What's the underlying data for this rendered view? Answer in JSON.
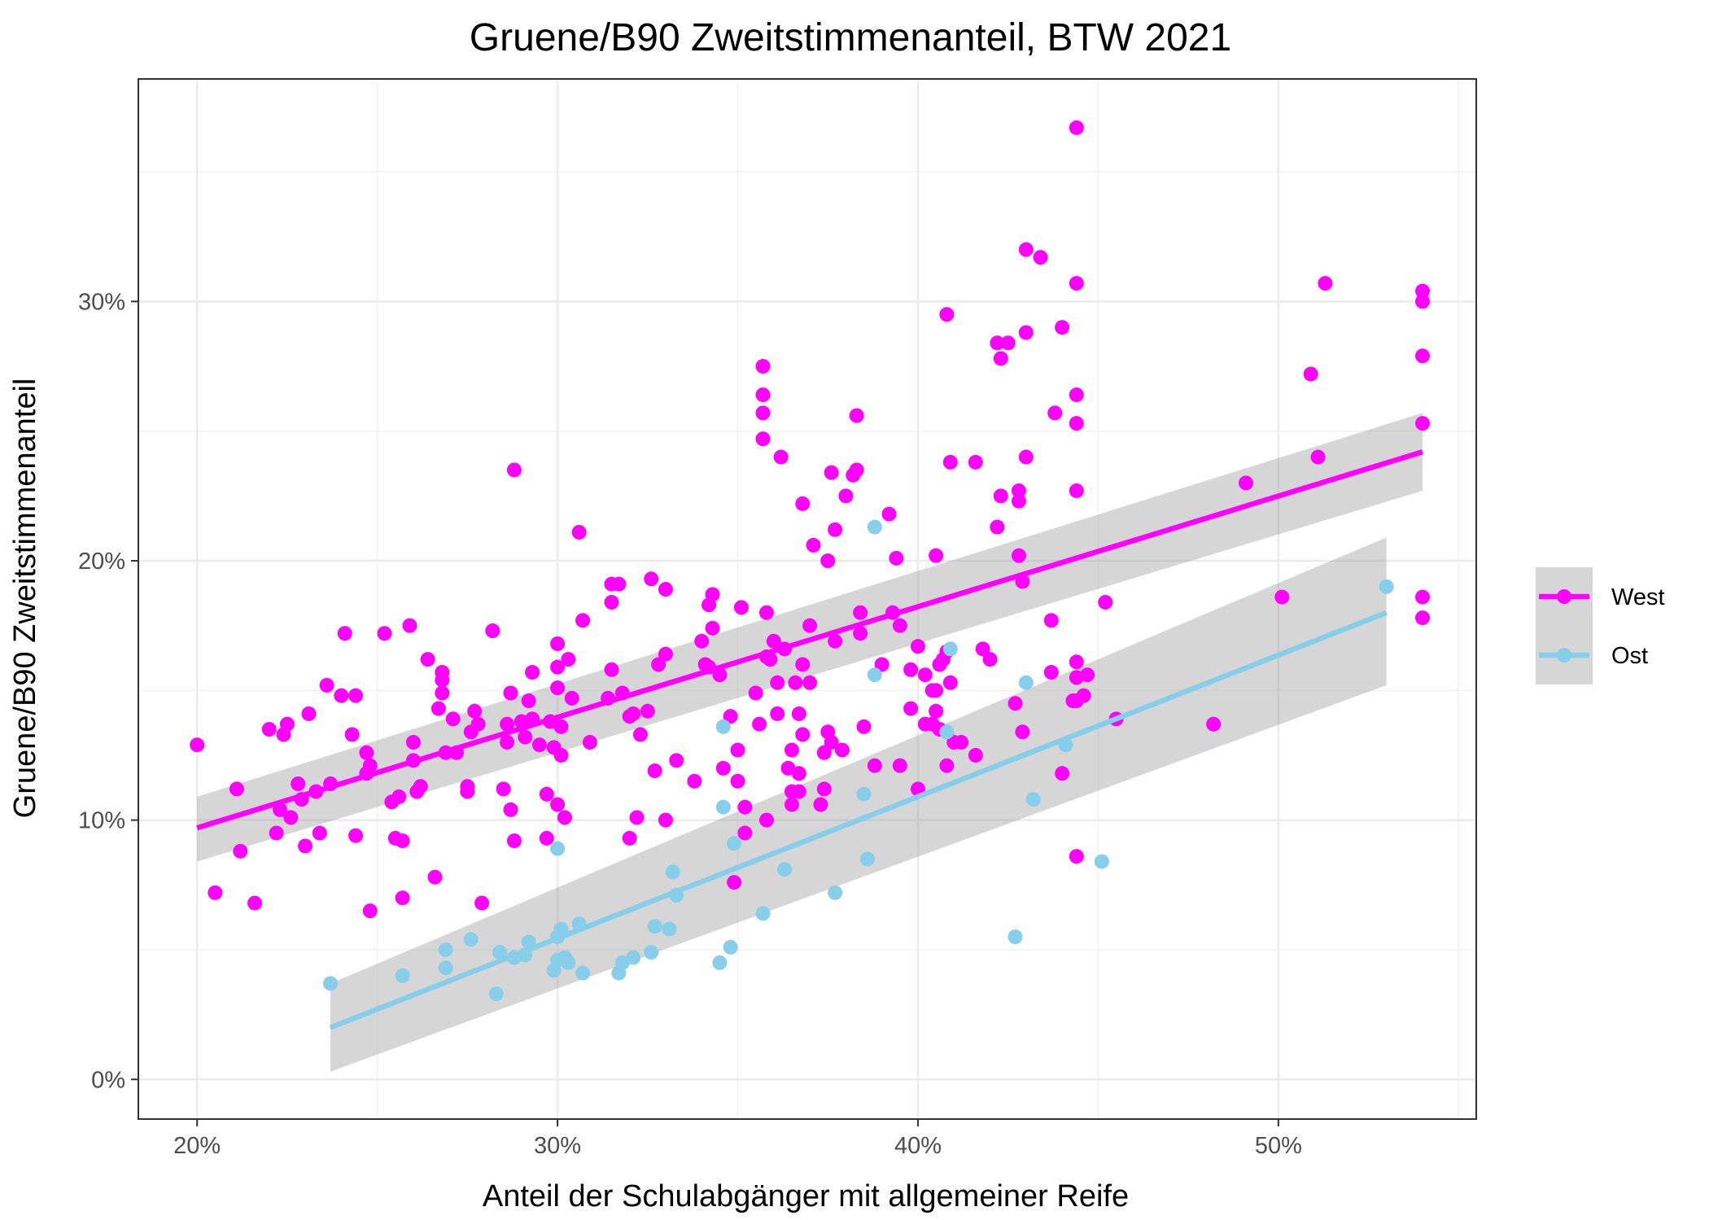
{
  "chart_data": {
    "type": "scatter",
    "title": "Gruene/B90 Zweitstimmenanteil, BTW 2021",
    "xlabel": "Anteil der Schulabgänger mit allgemeiner Reife",
    "ylabel": "Gruene/B90 Zweitstimmenanteil",
    "xlim": [
      0.1837,
      0.5549
    ],
    "ylim": [
      -0.0153,
      0.3858
    ],
    "x_ticks": [
      0.2,
      0.3,
      0.4,
      0.5
    ],
    "x_tick_labels": [
      "20%",
      "30%",
      "40%",
      "50%"
    ],
    "y_ticks": [
      0.0,
      0.1,
      0.2,
      0.3
    ],
    "y_tick_labels": [
      "0%",
      "10%",
      "20%",
      "30%"
    ],
    "grid": true,
    "legend_position": "right",
    "series": [
      {
        "name": "West",
        "color": "#FF00FF",
        "fit": {
          "x": [
            0.2,
            0.54
          ],
          "y": [
            0.097,
            0.242
          ],
          "ci_lower": [
            0.084,
            0.227
          ],
          "ci_upper": [
            0.109,
            0.257
          ]
        },
        "points": [
          [
            0.2,
            0.129
          ],
          [
            0.205,
            0.072
          ],
          [
            0.211,
            0.112
          ],
          [
            0.212,
            0.088
          ],
          [
            0.216,
            0.068
          ],
          [
            0.22,
            0.135
          ],
          [
            0.222,
            0.095
          ],
          [
            0.223,
            0.104
          ],
          [
            0.224,
            0.133
          ],
          [
            0.225,
            0.137
          ],
          [
            0.226,
            0.101
          ],
          [
            0.228,
            0.114
          ],
          [
            0.229,
            0.108
          ],
          [
            0.23,
            0.09
          ],
          [
            0.231,
            0.141
          ],
          [
            0.233,
            0.111
          ],
          [
            0.234,
            0.095
          ],
          [
            0.236,
            0.152
          ],
          [
            0.237,
            0.114
          ],
          [
            0.24,
            0.148
          ],
          [
            0.241,
            0.172
          ],
          [
            0.243,
            0.133
          ],
          [
            0.244,
            0.094
          ],
          [
            0.244,
            0.148
          ],
          [
            0.247,
            0.126
          ],
          [
            0.247,
            0.118
          ],
          [
            0.248,
            0.065
          ],
          [
            0.248,
            0.121
          ],
          [
            0.252,
            0.172
          ],
          [
            0.254,
            0.107
          ],
          [
            0.255,
            0.093
          ],
          [
            0.256,
            0.109
          ],
          [
            0.257,
            0.092
          ],
          [
            0.257,
            0.07
          ],
          [
            0.259,
            0.175
          ],
          [
            0.26,
            0.123
          ],
          [
            0.26,
            0.13
          ],
          [
            0.261,
            0.111
          ],
          [
            0.262,
            0.113
          ],
          [
            0.264,
            0.162
          ],
          [
            0.266,
            0.078
          ],
          [
            0.267,
            0.143
          ],
          [
            0.268,
            0.149
          ],
          [
            0.268,
            0.157
          ],
          [
            0.268,
            0.154
          ],
          [
            0.269,
            0.126
          ],
          [
            0.271,
            0.139
          ],
          [
            0.272,
            0.126
          ],
          [
            0.275,
            0.113
          ],
          [
            0.275,
            0.111
          ],
          [
            0.276,
            0.134
          ],
          [
            0.277,
            0.142
          ],
          [
            0.278,
            0.137
          ],
          [
            0.279,
            0.068
          ],
          [
            0.282,
            0.173
          ],
          [
            0.285,
            0.112
          ],
          [
            0.286,
            0.13
          ],
          [
            0.286,
            0.137
          ],
          [
            0.287,
            0.104
          ],
          [
            0.287,
            0.149
          ],
          [
            0.288,
            0.235
          ],
          [
            0.288,
            0.092
          ],
          [
            0.29,
            0.138
          ],
          [
            0.291,
            0.132
          ],
          [
            0.292,
            0.146
          ],
          [
            0.293,
            0.157
          ],
          [
            0.293,
            0.139
          ],
          [
            0.295,
            0.129
          ],
          [
            0.297,
            0.093
          ],
          [
            0.297,
            0.11
          ],
          [
            0.298,
            0.138
          ],
          [
            0.299,
            0.128
          ],
          [
            0.3,
            0.151
          ],
          [
            0.3,
            0.159
          ],
          [
            0.3,
            0.168
          ],
          [
            0.3,
            0.106
          ],
          [
            0.301,
            0.125
          ],
          [
            0.301,
            0.136
          ],
          [
            0.302,
            0.101
          ],
          [
            0.303,
            0.162
          ],
          [
            0.304,
            0.147
          ],
          [
            0.306,
            0.211
          ],
          [
            0.307,
            0.177
          ],
          [
            0.309,
            0.13
          ],
          [
            0.314,
            0.147
          ],
          [
            0.315,
            0.158
          ],
          [
            0.315,
            0.184
          ],
          [
            0.315,
            0.191
          ],
          [
            0.317,
            0.191
          ],
          [
            0.318,
            0.149
          ],
          [
            0.32,
            0.14
          ],
          [
            0.32,
            0.093
          ],
          [
            0.321,
            0.141
          ],
          [
            0.322,
            0.101
          ],
          [
            0.323,
            0.133
          ],
          [
            0.325,
            0.142
          ],
          [
            0.326,
            0.193
          ],
          [
            0.327,
            0.119
          ],
          [
            0.328,
            0.16
          ],
          [
            0.33,
            0.1
          ],
          [
            0.33,
            0.189
          ],
          [
            0.33,
            0.164
          ],
          [
            0.333,
            0.123
          ],
          [
            0.338,
            0.115
          ],
          [
            0.34,
            0.169
          ],
          [
            0.341,
            0.16
          ],
          [
            0.342,
            0.183
          ],
          [
            0.342,
            0.159
          ],
          [
            0.343,
            0.187
          ],
          [
            0.343,
            0.174
          ],
          [
            0.345,
            0.156
          ],
          [
            0.346,
            0.12
          ],
          [
            0.348,
            0.14
          ],
          [
            0.349,
            0.076
          ],
          [
            0.35,
            0.127
          ],
          [
            0.35,
            0.115
          ],
          [
            0.351,
            0.182
          ],
          [
            0.352,
            0.105
          ],
          [
            0.352,
            0.095
          ],
          [
            0.355,
            0.149
          ],
          [
            0.356,
            0.137
          ],
          [
            0.357,
            0.275
          ],
          [
            0.357,
            0.264
          ],
          [
            0.357,
            0.257
          ],
          [
            0.357,
            0.247
          ],
          [
            0.358,
            0.163
          ],
          [
            0.358,
            0.18
          ],
          [
            0.358,
            0.1
          ],
          [
            0.359,
            0.162
          ],
          [
            0.36,
            0.169
          ],
          [
            0.361,
            0.141
          ],
          [
            0.361,
            0.153
          ],
          [
            0.362,
            0.24
          ],
          [
            0.363,
            0.166
          ],
          [
            0.364,
            0.12
          ],
          [
            0.365,
            0.111
          ],
          [
            0.365,
            0.127
          ],
          [
            0.365,
            0.106
          ],
          [
            0.366,
            0.153
          ],
          [
            0.367,
            0.118
          ],
          [
            0.367,
            0.141
          ],
          [
            0.367,
            0.111
          ],
          [
            0.368,
            0.16
          ],
          [
            0.368,
            0.222
          ],
          [
            0.368,
            0.133
          ],
          [
            0.37,
            0.175
          ],
          [
            0.37,
            0.153
          ],
          [
            0.371,
            0.206
          ],
          [
            0.373,
            0.106
          ],
          [
            0.374,
            0.126
          ],
          [
            0.374,
            0.112
          ],
          [
            0.375,
            0.2
          ],
          [
            0.375,
            0.134
          ],
          [
            0.376,
            0.234
          ],
          [
            0.376,
            0.13
          ],
          [
            0.377,
            0.212
          ],
          [
            0.377,
            0.169
          ],
          [
            0.379,
            0.127
          ],
          [
            0.38,
            0.225
          ],
          [
            0.382,
            0.233
          ],
          [
            0.383,
            0.235
          ],
          [
            0.383,
            0.256
          ],
          [
            0.384,
            0.172
          ],
          [
            0.384,
            0.18
          ],
          [
            0.385,
            0.136
          ],
          [
            0.388,
            0.121
          ],
          [
            0.39,
            0.16
          ],
          [
            0.392,
            0.218
          ],
          [
            0.393,
            0.18
          ],
          [
            0.394,
            0.201
          ],
          [
            0.395,
            0.175
          ],
          [
            0.395,
            0.121
          ],
          [
            0.398,
            0.158
          ],
          [
            0.398,
            0.143
          ],
          [
            0.4,
            0.167
          ],
          [
            0.4,
            0.112
          ],
          [
            0.402,
            0.137
          ],
          [
            0.402,
            0.156
          ],
          [
            0.404,
            0.15
          ],
          [
            0.404,
            0.137
          ],
          [
            0.405,
            0.202
          ],
          [
            0.405,
            0.15
          ],
          [
            0.405,
            0.142
          ],
          [
            0.406,
            0.135
          ],
          [
            0.406,
            0.16
          ],
          [
            0.407,
            0.162
          ],
          [
            0.408,
            0.121
          ],
          [
            0.408,
            0.295
          ],
          [
            0.408,
            0.165
          ],
          [
            0.409,
            0.238
          ],
          [
            0.409,
            0.153
          ],
          [
            0.41,
            0.13
          ],
          [
            0.412,
            0.13
          ],
          [
            0.416,
            0.125
          ],
          [
            0.416,
            0.238
          ],
          [
            0.418,
            0.166
          ],
          [
            0.42,
            0.162
          ],
          [
            0.422,
            0.213
          ],
          [
            0.422,
            0.284
          ],
          [
            0.423,
            0.278
          ],
          [
            0.423,
            0.225
          ],
          [
            0.425,
            0.284
          ],
          [
            0.427,
            0.145
          ],
          [
            0.428,
            0.202
          ],
          [
            0.428,
            0.223
          ],
          [
            0.428,
            0.227
          ],
          [
            0.429,
            0.192
          ],
          [
            0.429,
            0.134
          ],
          [
            0.43,
            0.32
          ],
          [
            0.43,
            0.288
          ],
          [
            0.43,
            0.24
          ],
          [
            0.434,
            0.317
          ],
          [
            0.437,
            0.157
          ],
          [
            0.437,
            0.177
          ],
          [
            0.438,
            0.257
          ],
          [
            0.44,
            0.29
          ],
          [
            0.44,
            0.118
          ],
          [
            0.443,
            0.146
          ],
          [
            0.444,
            0.367
          ],
          [
            0.444,
            0.307
          ],
          [
            0.444,
            0.264
          ],
          [
            0.444,
            0.253
          ],
          [
            0.444,
            0.227
          ],
          [
            0.444,
            0.161
          ],
          [
            0.444,
            0.155
          ],
          [
            0.444,
            0.146
          ],
          [
            0.444,
            0.086
          ],
          [
            0.446,
            0.148
          ],
          [
            0.447,
            0.156
          ],
          [
            0.452,
            0.184
          ],
          [
            0.455,
            0.139
          ],
          [
            0.482,
            0.137
          ],
          [
            0.491,
            0.23
          ],
          [
            0.501,
            0.186
          ],
          [
            0.509,
            0.272
          ],
          [
            0.511,
            0.24
          ],
          [
            0.513,
            0.307
          ],
          [
            0.54,
            0.304
          ],
          [
            0.54,
            0.3
          ],
          [
            0.54,
            0.279
          ],
          [
            0.54,
            0.253
          ],
          [
            0.54,
            0.186
          ],
          [
            0.54,
            0.178
          ]
        ]
      },
      {
        "name": "Ost",
        "color": "#87CEEB",
        "fit": {
          "x": [
            0.237,
            0.53
          ],
          "y": [
            0.02,
            0.18
          ],
          "ci_lower": [
            0.003,
            0.152
          ],
          "ci_upper": [
            0.037,
            0.209
          ]
        },
        "points": [
          [
            0.237,
            0.037
          ],
          [
            0.257,
            0.04
          ],
          [
            0.269,
            0.05
          ],
          [
            0.269,
            0.043
          ],
          [
            0.276,
            0.054
          ],
          [
            0.283,
            0.033
          ],
          [
            0.284,
            0.049
          ],
          [
            0.288,
            0.047
          ],
          [
            0.291,
            0.048
          ],
          [
            0.292,
            0.053
          ],
          [
            0.299,
            0.042
          ],
          [
            0.3,
            0.046
          ],
          [
            0.3,
            0.055
          ],
          [
            0.3,
            0.089
          ],
          [
            0.301,
            0.058
          ],
          [
            0.302,
            0.047
          ],
          [
            0.303,
            0.045
          ],
          [
            0.306,
            0.06
          ],
          [
            0.307,
            0.041
          ],
          [
            0.317,
            0.041
          ],
          [
            0.318,
            0.045
          ],
          [
            0.321,
            0.047
          ],
          [
            0.326,
            0.049
          ],
          [
            0.327,
            0.059
          ],
          [
            0.331,
            0.058
          ],
          [
            0.332,
            0.08
          ],
          [
            0.333,
            0.071
          ],
          [
            0.345,
            0.045
          ],
          [
            0.346,
            0.136
          ],
          [
            0.346,
            0.105
          ],
          [
            0.348,
            0.051
          ],
          [
            0.349,
            0.091
          ],
          [
            0.357,
            0.064
          ],
          [
            0.363,
            0.081
          ],
          [
            0.377,
            0.072
          ],
          [
            0.385,
            0.11
          ],
          [
            0.386,
            0.085
          ],
          [
            0.388,
            0.213
          ],
          [
            0.388,
            0.156
          ],
          [
            0.408,
            0.134
          ],
          [
            0.409,
            0.166
          ],
          [
            0.427,
            0.055
          ],
          [
            0.43,
            0.153
          ],
          [
            0.432,
            0.108
          ],
          [
            0.441,
            0.129
          ],
          [
            0.451,
            0.084
          ],
          [
            0.53,
            0.19
          ]
        ]
      }
    ]
  }
}
